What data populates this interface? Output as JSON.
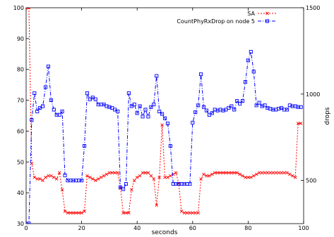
{
  "chart_data": {
    "type": "line",
    "title": "",
    "xlabel": "seconds",
    "ylabel": "",
    "y2label": "drops",
    "xlim": [
      0,
      100
    ],
    "ylim": [
      30,
      100
    ],
    "y2lim": [
      250,
      1500
    ],
    "xticks": [
      0,
      20,
      40,
      60,
      80,
      100
    ],
    "yticks": [
      30,
      40,
      50,
      60,
      70,
      80,
      90,
      100
    ],
    "y2ticks": [
      500,
      1000,
      1500
    ],
    "grid": false,
    "legend_position": "top-right",
    "series": [
      {
        "name": "SA",
        "axis": "left",
        "color": "#ff0000",
        "marker": "x",
        "line": "dotted",
        "x": [
          0,
          1,
          2,
          3,
          4,
          5,
          6,
          7,
          8,
          9,
          10,
          11,
          12,
          13,
          14,
          15,
          16,
          17,
          18,
          19,
          20,
          21,
          22,
          23,
          24,
          25,
          26,
          27,
          28,
          29,
          30,
          31,
          32,
          33,
          34,
          35,
          36,
          37,
          38,
          39,
          40,
          41,
          42,
          43,
          44,
          45,
          46,
          47,
          48,
          49,
          50,
          51,
          52,
          53,
          54,
          55,
          56,
          57,
          58,
          59,
          60,
          61,
          62,
          63,
          64,
          65,
          66,
          67,
          68,
          69,
          70,
          71,
          72,
          73,
          74,
          75,
          76,
          77,
          78,
          79,
          80,
          81,
          82,
          83,
          84,
          85,
          86,
          87,
          88,
          89,
          90,
          91,
          92,
          93,
          94,
          95,
          96,
          97,
          98,
          99
        ],
        "values": [
          100,
          100,
          49.5,
          45,
          44.5,
          44.5,
          44,
          45,
          45.5,
          45.5,
          45,
          44.5,
          46.5,
          41,
          34,
          33.5,
          33.5,
          33.5,
          33.5,
          33.5,
          33.5,
          34,
          45.5,
          45,
          44.5,
          44,
          44.5,
          45,
          45.5,
          46,
          46.5,
          46.5,
          46.5,
          46.5,
          41.5,
          33.5,
          33.5,
          33.5,
          41,
          44,
          45,
          45.5,
          46.5,
          46.5,
          46.5,
          45.5,
          44.5,
          36,
          45,
          62,
          45,
          45,
          45.5,
          46,
          46.5,
          43,
          34,
          33.5,
          33.5,
          33.5,
          33.5,
          33.5,
          33.5,
          44.5,
          46,
          45.5,
          45.5,
          46,
          46.5,
          46.5,
          46.5,
          46.5,
          46.5,
          46.5,
          46.5,
          46.5,
          46.5,
          46,
          45.5,
          45,
          45,
          45,
          45.5,
          46,
          46.5,
          46.5,
          46.5,
          46.5,
          46.5,
          46.5,
          46.5,
          46.5,
          46.5,
          46.5,
          46.5,
          46,
          45.5,
          45,
          62.5,
          62.5
        ]
      },
      {
        "name": "CountPhyRxDrop on node 5",
        "axis": "right",
        "color": "#0000ff",
        "marker": "square",
        "line": "dashdot",
        "x": [
          0,
          1,
          2,
          3,
          4,
          5,
          6,
          7,
          8,
          9,
          10,
          11,
          12,
          13,
          14,
          15,
          16,
          17,
          18,
          19,
          20,
          21,
          22,
          23,
          24,
          25,
          26,
          27,
          28,
          29,
          30,
          31,
          32,
          33,
          34,
          35,
          36,
          37,
          38,
          39,
          40,
          41,
          42,
          43,
          44,
          45,
          46,
          47,
          48,
          49,
          50,
          51,
          52,
          53,
          54,
          55,
          56,
          57,
          58,
          59,
          60,
          61,
          62,
          63,
          64,
          65,
          66,
          67,
          68,
          69,
          70,
          71,
          72,
          73,
          74,
          75,
          76,
          77,
          78,
          79,
          80,
          81,
          82,
          83,
          84,
          85,
          86,
          87,
          88,
          89,
          90,
          91,
          92,
          93,
          94,
          95,
          96,
          97,
          98,
          99
        ],
        "values": [
          250,
          250,
          850,
          1005,
          900,
          920,
          930,
          1040,
          1160,
          965,
          910,
          880,
          880,
          900,
          530,
          500,
          500,
          500,
          500,
          500,
          500,
          700,
          1005,
          970,
          980,
          970,
          940,
          940,
          940,
          930,
          925,
          920,
          910,
          900,
          460,
          450,
          480,
          1005,
          930,
          940,
          890,
          930,
          870,
          910,
          870,
          925,
          940,
          1105,
          900,
          885,
          860,
          830,
          700,
          480,
          480,
          480,
          480,
          480,
          480,
          480,
          835,
          895,
          935,
          1115,
          925,
          905,
          880,
          890,
          910,
          905,
          910,
          905,
          910,
          920,
          930,
          910,
          960,
          945,
          960,
          1070,
          1195,
          1245,
          1130,
          935,
          950,
          930,
          935,
          920,
          915,
          910,
          910,
          915,
          920,
          910,
          910,
          935,
          930,
          930,
          925,
          925
        ]
      }
    ]
  }
}
